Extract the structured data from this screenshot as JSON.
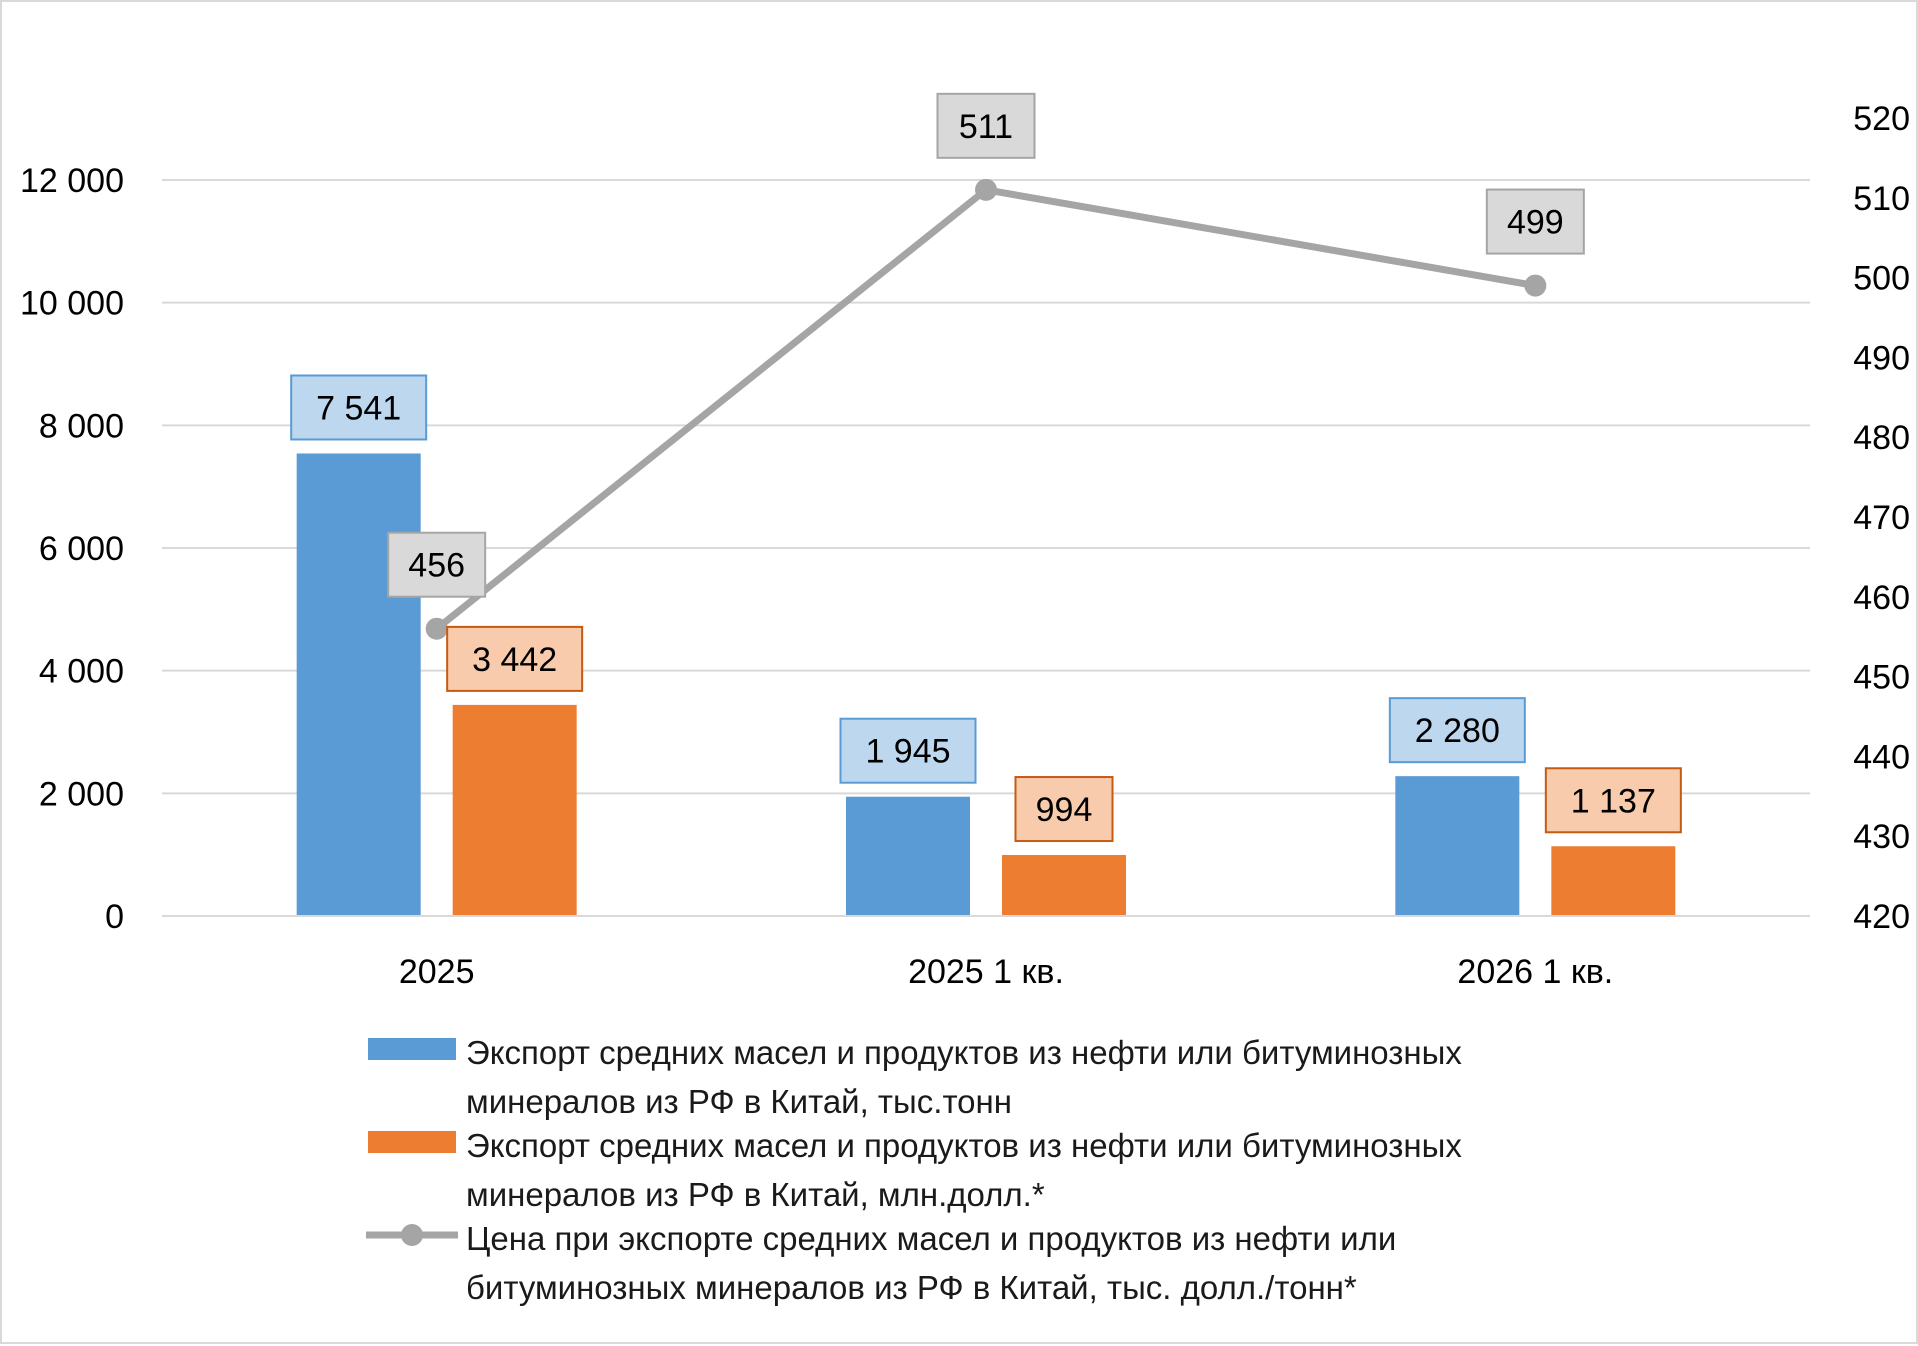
{
  "chart_data": {
    "type": "bar",
    "categories": [
      "2025",
      "2025 1 кв.",
      "2026 1 кв."
    ],
    "series": [
      {
        "name": "Экспорт средних масел и продуктов из нефти или битуминозных минералов из РФ в Китай, тыс.тонн",
        "name_lines": [
          "Экспорт средних масел и продуктов из нефти или битуминозных",
          "минералов из РФ в Китай, тыс.тонн"
        ],
        "kind": "bar",
        "axis": "left",
        "color": "#5b9bd5",
        "label_fill": "#bdd7ee",
        "label_stroke": "#5b9bd5",
        "values": [
          7541,
          1945,
          2280
        ],
        "labels": [
          "7 541",
          "1 945",
          "2 280"
        ]
      },
      {
        "name": "Экспорт средних масел и продуктов из нефти или битуминозных минералов из РФ в Китай, млн.долл.*",
        "name_lines": [
          "Экспорт средних масел и продуктов из нефти или битуминозных",
          "минералов из РФ в Китай, млн.долл.*"
        ],
        "kind": "bar",
        "axis": "left",
        "color": "#ed7d31",
        "label_fill": "#f8cbad",
        "label_stroke": "#c55a11",
        "values": [
          3442,
          994,
          1137
        ],
        "labels": [
          "3 442",
          "994",
          "1 137"
        ]
      },
      {
        "name": "Цена при экспорте средних масел и продуктов из нефти или битуминозных минералов из РФ в Китай, тыс. долл./тонн*",
        "name_lines": [
          "Цена при экспорте средних масел и продуктов из нефти или",
          "битуминозных минералов из РФ в Китай, тыс. долл./тонн*"
        ],
        "kind": "line",
        "axis": "right",
        "color": "#a5a5a5",
        "label_fill": "#d9d9d9",
        "label_stroke": "#a5a5a5",
        "values": [
          456,
          511,
          499
        ],
        "labels": [
          "456",
          "511",
          "499"
        ]
      }
    ],
    "y_left": {
      "min": 0,
      "max": 12000,
      "step": 2000,
      "tick_labels": [
        "0",
        "2 000",
        "4 000",
        "6 000",
        "8 000",
        "10 000",
        "12 000"
      ]
    },
    "y_right": {
      "min": 420,
      "max": 520,
      "step": 10,
      "tick_labels": [
        "420",
        "430",
        "440",
        "450",
        "460",
        "470",
        "480",
        "490",
        "500",
        "510",
        "520"
      ]
    },
    "grid": true,
    "legend_position": "bottom"
  }
}
